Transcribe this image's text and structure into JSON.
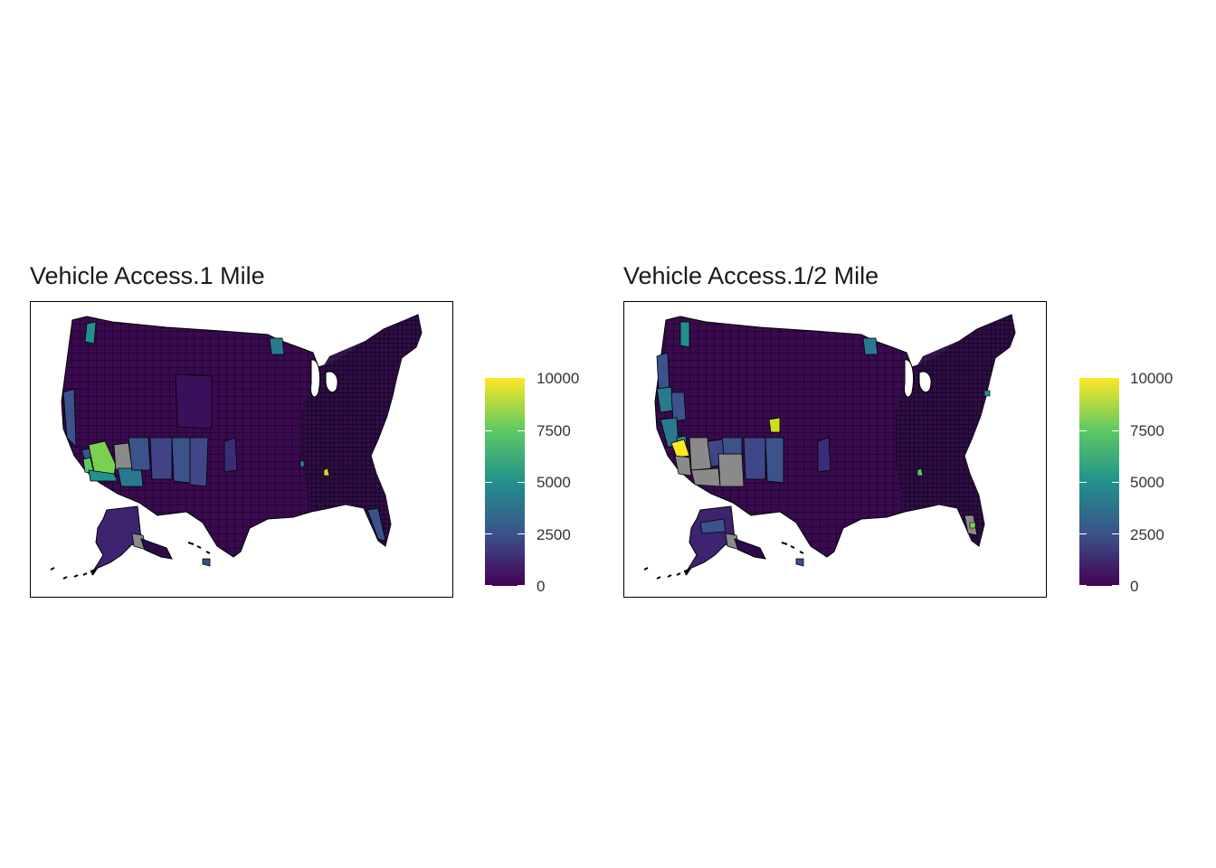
{
  "panels": [
    {
      "title": "Vehicle Access.1 Mile",
      "legend": {
        "min": 0,
        "max": 10000,
        "ticks": [
          "0",
          "2500",
          "5000",
          "7500",
          "10000"
        ]
      },
      "highlights": [
        {
          "region": "southern-california-inland",
          "value": 8200
        },
        {
          "region": "arizona-southwest",
          "value": 4800
        },
        {
          "region": "arizona-central",
          "value": 2400
        },
        {
          "region": "new-mexico",
          "value": 1800
        },
        {
          "region": "florida",
          "value": 1600
        },
        {
          "region": "minnesota-north",
          "value": 2600
        },
        {
          "region": "alaska-southeast",
          "value": "no data"
        }
      ]
    },
    {
      "title": "Vehicle Access.1/2 Mile",
      "legend": {
        "min": 0,
        "max": 10000,
        "ticks": [
          "0",
          "2500",
          "5000",
          "7500",
          "10000"
        ]
      },
      "highlights": [
        {
          "region": "southern-california-inland",
          "value": 9800
        },
        {
          "region": "california-central",
          "value": 4200
        },
        {
          "region": "oregon-coast",
          "value": 3800
        },
        {
          "region": "arizona",
          "value": "no data"
        },
        {
          "region": "new-mexico",
          "value": 1900
        },
        {
          "region": "florida-south",
          "value": "no data"
        },
        {
          "region": "minnesota-north",
          "value": 3000
        },
        {
          "region": "alaska-southeast",
          "value": "no data"
        }
      ]
    }
  ],
  "colors": {
    "viridis": [
      "#440154",
      "#3b528b",
      "#21918c",
      "#5ec962",
      "#fde725"
    ],
    "no_data": "#8a8a8a",
    "border": "#000000"
  }
}
